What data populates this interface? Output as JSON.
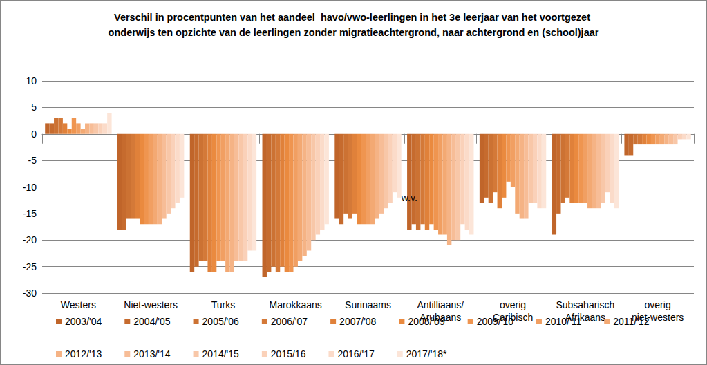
{
  "chart_data": {
    "type": "bar",
    "title": "Verschil in procentpunten van het aandeel  havo/vwo-leerlingen in het 3e leerjaar van het voortgezet onderwijs ten opzichte van de leerlingen zonder migratieachtergrond, naar achtergrond en (school)jaar",
    "categories": [
      "Westers",
      "Niet-westers",
      "Turks",
      "Marokkaans",
      "Surinaams",
      "Antilliaans/\nArubaans",
      "overig\nCaribisch",
      "Subsaharisch\nAfrikaans",
      "overig\nniet-westers"
    ],
    "series": [
      {
        "name": "2003/'04",
        "color": "#c0652a",
        "values": [
          2,
          -18,
          -26,
          -27,
          -16,
          -18,
          -13,
          -19,
          -4
        ]
      },
      {
        "name": "2004/'05",
        "color": "#c66b2e",
        "values": [
          2,
          -18,
          -25,
          -26,
          -17,
          -17,
          -12,
          -15,
          -4
        ]
      },
      {
        "name": "2005/'06",
        "color": "#cc7233",
        "values": [
          3,
          -16,
          -24,
          -25,
          -15,
          -18,
          -13,
          -13,
          -2
        ]
      },
      {
        "name": "2006/'07",
        "color": "#d47938",
        "values": [
          3,
          -16,
          -24,
          -26,
          -16,
          -17,
          -11,
          -12,
          -2
        ]
      },
      {
        "name": "2007/'08",
        "color": "#e0813a",
        "values": [
          2,
          -16,
          -26,
          -25,
          -15,
          -18,
          -14,
          -13,
          -2
        ]
      },
      {
        "name": "2008/'09",
        "color": "#ea8a3f",
        "values": [
          1,
          -17,
          -26,
          -26,
          -17,
          -17,
          -12,
          -13,
          -2
        ]
      },
      {
        "name": "2009/'10",
        "color": "#ef9550",
        "values": [
          3,
          -17,
          -24,
          -26,
          -17,
          -18,
          -9,
          -13,
          -2
        ]
      },
      {
        "name": "2010/'11",
        "color": "#f19f62",
        "values": [
          2,
          -17,
          -24,
          -25,
          -17,
          -19,
          -10,
          -13,
          -2
        ]
      },
      {
        "name": "2011/'12",
        "color": "#f3a973",
        "values": [
          1,
          -17,
          -26,
          -24,
          -17,
          -19,
          -15,
          -14,
          -2
        ]
      },
      {
        "name": "2012/'13",
        "color": "#f5b385",
        "values": [
          2,
          -17,
          -26,
          -23,
          -16,
          -21,
          -16,
          -14,
          -2
        ]
      },
      {
        "name": "2013/'14",
        "color": "#f7bd97",
        "values": [
          2,
          -16,
          -24,
          -22,
          -15,
          -20,
          -16,
          -14,
          -2
        ]
      },
      {
        "name": "2014/'15",
        "color": "#f8c7a8",
        "values": [
          2,
          -15,
          -24,
          -20,
          -14,
          -20,
          -13,
          -13,
          -2
        ]
      },
      {
        "name": "2015/16",
        "color": "#fad1b9",
        "values": [
          2,
          -14,
          -24,
          -19,
          -13,
          -17,
          -13,
          -11,
          -1
        ]
      },
      {
        "name": "2016/'17",
        "color": "#fbdbc9",
        "values": [
          2,
          -13,
          -22,
          -18,
          -11,
          -18,
          -14,
          -13,
          -1
        ]
      },
      {
        "name": "2017/'18*",
        "color": "#fce5d8",
        "values": [
          4,
          -12,
          -22,
          -17,
          -12,
          -19,
          -14,
          -14,
          -1
        ]
      }
    ],
    "annotations": [
      {
        "text": "w.v.",
        "x": "Antilliaans/\nArubaans",
        "y": -12
      }
    ],
    "ylim": [
      -30,
      10
    ],
    "yticks": [
      -30,
      -25,
      -20,
      -15,
      -10,
      -5,
      0,
      5,
      10
    ],
    "grid": true,
    "legend": "bottom",
    "data_labels": false
  }
}
